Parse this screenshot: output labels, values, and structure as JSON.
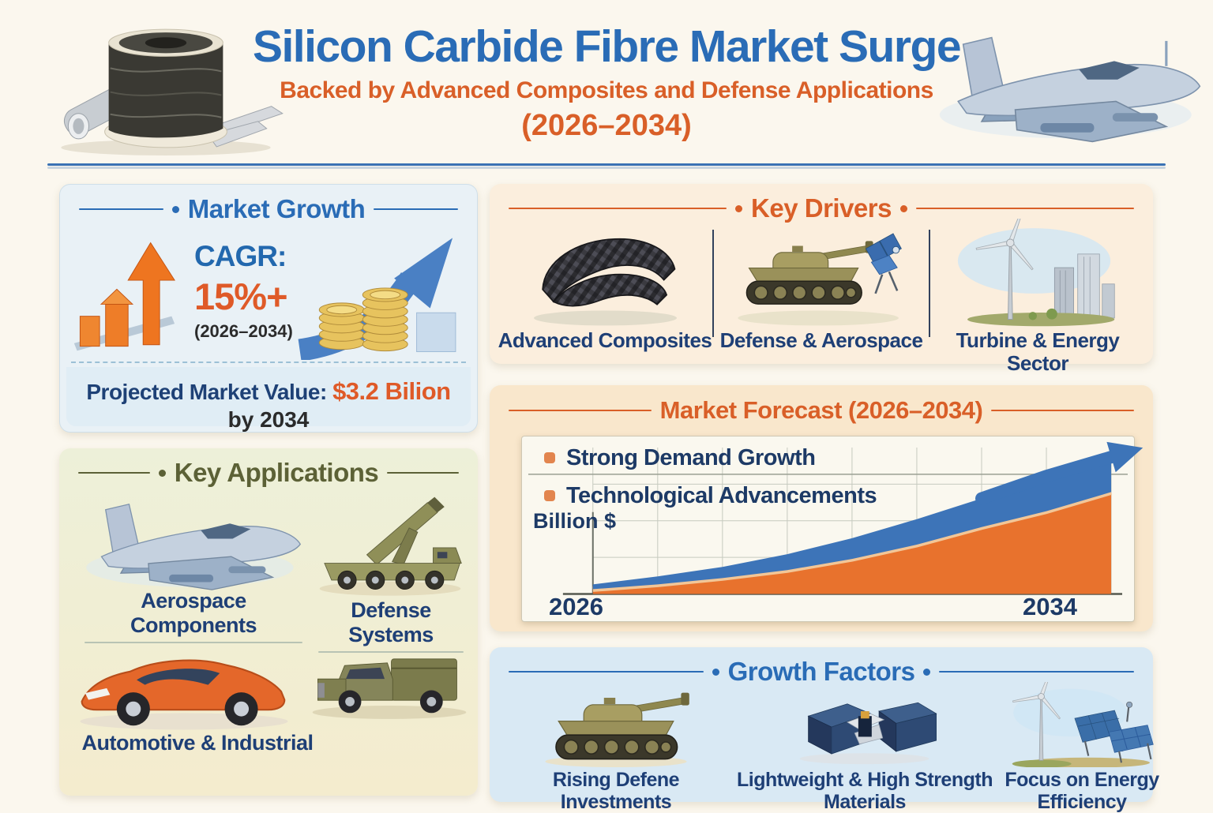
{
  "header": {
    "title": "Silicon Carbide Fibre Market Surge",
    "subtitle": "Backed by Advanced Composites and Defense Applications",
    "period": "(2026–2034)",
    "left_icon": "carbon-fibre-spool-icon",
    "right_icon": "fighter-jet-icon"
  },
  "market_growth": {
    "title": "Market Growth",
    "cagr_label": "CAGR:",
    "cagr_value": "15%+",
    "cagr_period": "(2026–2034)",
    "projected_label": "Projected Market Value:",
    "projected_value": "$3.2 Bilion",
    "projected_suffix": "by 2034",
    "icons": [
      "rising-bars-arrow-icon",
      "coin-stacks-growth-arrow-icon"
    ]
  },
  "key_applications": {
    "title": "Key Applications",
    "cells": [
      {
        "icon": "fighter-jet-icon",
        "label": "Aerospace Components"
      },
      {
        "icon": "missile-launcher-vehicle-icon",
        "label": "Defense Systems"
      },
      {
        "icon": "sports-car-icon",
        "label": "Automotive & Industrial"
      },
      {
        "icon": "military-pickup-truck-icon",
        "label": ""
      }
    ]
  },
  "key_drivers": {
    "title": "Key Drivers",
    "items": [
      {
        "icon": "carbon-fibre-fabric-icon",
        "label": "Advanced Composites"
      },
      {
        "icon": "tank-and-satellite-icon",
        "label": "Defense & Aerospace"
      },
      {
        "icon": "wind-turbine-city-icon",
        "label": "Turbine & Energy Sector"
      }
    ]
  },
  "market_forecast": {
    "title": "Market Forecast (2026–2034)",
    "bullets": [
      "Strong Demand Growth",
      "Technological Advancements"
    ],
    "ylabel": "Billion $",
    "x_start": "2026",
    "x_end": "2034"
  },
  "growth_factors": {
    "title": "Growth Factors",
    "items": [
      {
        "icon": "tank-icon",
        "label": "Rising Defene Investments"
      },
      {
        "icon": "composite-containers-icon",
        "label": "Lightweight & High Strength Materials"
      },
      {
        "icon": "wind-turbine-solar-panels-icon",
        "label": "Focus on Energy Efficiency"
      }
    ]
  },
  "chart_data": {
    "type": "area",
    "title": "Market Forecast (2026–2034)",
    "ylabel": "Billion $",
    "x": [
      2026,
      2027,
      2028,
      2029,
      2030,
      2031,
      2032,
      2033,
      2034
    ],
    "x_tick_labels_shown": [
      "2026",
      "2034"
    ],
    "series": [
      {
        "name": "projected-market-value-orange-area",
        "values": [
          0.15,
          0.3,
          0.5,
          0.75,
          1.1,
          1.55,
          2.1,
          2.6,
          3.2
        ]
      },
      {
        "name": "growth-trend-band-blue-area",
        "values": [
          0.3,
          0.55,
          0.85,
          1.25,
          1.75,
          2.35,
          3.0,
          3.7,
          4.3
        ]
      }
    ],
    "ylim": [
      0,
      4.6
    ],
    "grid": true,
    "legend": "none",
    "annotations": [
      "Strong Demand Growth",
      "Technological Advancements"
    ]
  },
  "colors": {
    "background": "#fbf7ee",
    "title_blue": "#2a6cb6",
    "accent_orange": "#d95f28",
    "navy_text": "#1e3f76",
    "olive_title": "#5c6136",
    "market_growth_bg": "#e9f1f6",
    "key_applications_bg": "#eef0d8",
    "key_drivers_bg": "#fbeedd",
    "market_forecast_bg": "#f9e7cc",
    "growth_factors_bg": "#d9e9f4",
    "chart_orange": "#e8722d",
    "chart_blue": "#3d74b8",
    "chart_band_cream": "#f2c697",
    "coin_gold": "#e7c35e"
  }
}
